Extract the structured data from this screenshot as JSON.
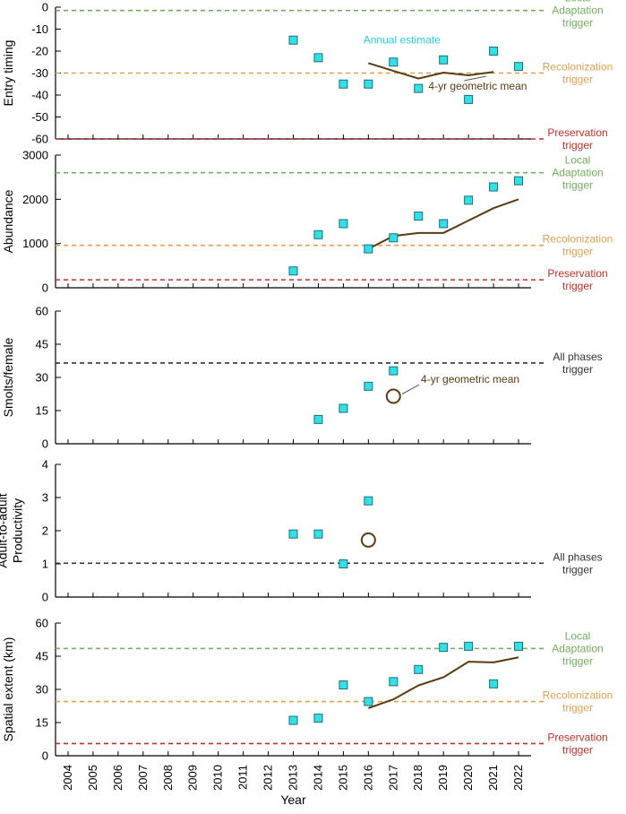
{
  "colors": {
    "marker_fill": "#33e0e8",
    "marker_stroke": "#1a6f78",
    "mean_line": "#5a3a10",
    "local_adaptation": "#6fae5a",
    "recolonization": "#e0a050",
    "preservation": "#c0302a",
    "all_phases": "#333333",
    "annual_label": "#28d0dc"
  },
  "chart_data": [
    {
      "id": "entry-timing",
      "type": "scatter",
      "ylabel": [
        "Entry timing"
      ],
      "ylim": [
        -60,
        0
      ],
      "yticks": [
        0,
        -10,
        -20,
        -30,
        -40,
        -50,
        -60
      ],
      "x": [
        2013,
        2014,
        2015,
        2016,
        2017,
        2018,
        2019,
        2020,
        2021,
        2022
      ],
      "values": [
        -15,
        -23,
        -35,
        -35,
        -25,
        -37,
        -24,
        -42,
        -20,
        -27
      ],
      "mean_x": [
        2016,
        2017,
        2018,
        2019,
        2020,
        2021
      ],
      "mean_values": [
        -25.5,
        -29,
        -32.5,
        -29.8,
        -31,
        -29.5
      ],
      "triggers": [
        {
          "value": -1.5,
          "kind": "local_adaptation",
          "label": [
            "Local",
            "Adaptation",
            "trigger"
          ]
        },
        {
          "value": -30,
          "kind": "recolonization",
          "label": [
            "Recolonization",
            "trigger"
          ]
        },
        {
          "value": -60,
          "kind": "preservation",
          "label": [
            "Preservation",
            "trigger"
          ]
        }
      ],
      "annotations": [
        {
          "text": "Annual estimate",
          "kind": "annual",
          "at": [
            2015.8,
            -16.5
          ]
        },
        {
          "text": "4-yr geometric mean",
          "kind": "mean",
          "at": [
            2018.4,
            -37.5
          ],
          "pointer_to": [
            2020.7,
            -31.5
          ]
        }
      ]
    },
    {
      "id": "abundance",
      "type": "scatter",
      "ylabel": [
        "Abundance"
      ],
      "ylim": [
        0,
        3000
      ],
      "yticks": [
        0,
        1000,
        2000,
        3000
      ],
      "x": [
        2013,
        2014,
        2015,
        2016,
        2017,
        2018,
        2019,
        2020,
        2021,
        2022
      ],
      "values": [
        380,
        1200,
        1450,
        880,
        1130,
        1620,
        1450,
        1980,
        2280,
        2420
      ],
      "mean_x": [
        2016,
        2017,
        2018,
        2019,
        2020,
        2021,
        2022
      ],
      "mean_values": [
        880,
        1170,
        1240,
        1240,
        1520,
        1800,
        2000
      ],
      "triggers": [
        {
          "value": 2600,
          "kind": "local_adaptation",
          "label": [
            "Local",
            "Adaptation",
            "trigger"
          ]
        },
        {
          "value": 960,
          "kind": "recolonization",
          "label": [
            "Recolonization",
            "trigger"
          ]
        },
        {
          "value": 180,
          "kind": "preservation",
          "label": [
            "Preservation",
            "trigger"
          ]
        }
      ],
      "annotations": []
    },
    {
      "id": "smolts",
      "type": "scatter",
      "ylabel": [
        "Smolts/female"
      ],
      "ylim": [
        0,
        60
      ],
      "yticks": [
        0,
        15,
        30,
        45,
        60
      ],
      "x": [
        2014,
        2015,
        2016,
        2017
      ],
      "values": [
        11,
        16,
        26,
        33
      ],
      "mean_points": [
        {
          "x": 2017,
          "value": 21.5
        }
      ],
      "triggers": [
        {
          "value": 36.5,
          "kind": "all_phases",
          "label": [
            "All phases",
            "trigger"
          ]
        }
      ],
      "annotations": [
        {
          "text": "4-yr geometric mean",
          "kind": "mean",
          "at": [
            2018.1,
            27.5
          ],
          "pointer_to": [
            2017.35,
            22.5
          ]
        }
      ]
    },
    {
      "id": "productivity",
      "type": "scatter",
      "ylabel": [
        "Adult-to-adult",
        "Productivity"
      ],
      "ylim": [
        0,
        4
      ],
      "yticks": [
        0,
        1,
        2,
        3,
        4
      ],
      "x": [
        2013,
        2014,
        2015,
        2016
      ],
      "values": [
        1.9,
        1.9,
        1.0,
        2.9
      ],
      "mean_points": [
        {
          "x": 2016,
          "value": 1.72
        }
      ],
      "triggers": [
        {
          "value": 1.02,
          "kind": "all_phases",
          "label": [
            "All phases",
            "trigger"
          ]
        }
      ],
      "annotations": []
    },
    {
      "id": "spatial",
      "type": "scatter",
      "ylabel": [
        "Spatial extent (km)"
      ],
      "ylim": [
        0,
        60
      ],
      "yticks": [
        0,
        15,
        30,
        45,
        60
      ],
      "x": [
        2013,
        2014,
        2015,
        2016,
        2017,
        2018,
        2019,
        2020,
        2021,
        2022
      ],
      "values": [
        16,
        17,
        32,
        24.5,
        33.5,
        39,
        49,
        49.5,
        32.5,
        49.5
      ],
      "mean_x": [
        2016,
        2017,
        2018,
        2019,
        2020,
        2021,
        2022
      ],
      "mean_values": [
        21.5,
        25.5,
        31.8,
        35.5,
        42.5,
        42.2,
        44.5
      ],
      "triggers": [
        {
          "value": 48.5,
          "kind": "local_adaptation",
          "label": [
            "Local",
            "Adaptation",
            "trigger"
          ]
        },
        {
          "value": 24.5,
          "kind": "recolonization",
          "label": [
            "Recolonization",
            "trigger"
          ]
        },
        {
          "value": 5.5,
          "kind": "preservation",
          "label": [
            "Preservation",
            "trigger"
          ]
        }
      ],
      "annotations": []
    }
  ],
  "x_axis": {
    "label": "Year",
    "range": [
      2003.5,
      2022.5
    ],
    "categories": [
      "2004",
      "2005",
      "2006",
      "2007",
      "2008",
      "2009",
      "2010",
      "2011",
      "2012",
      "2013",
      "2014",
      "2015",
      "2016",
      "2017",
      "2018",
      "2019",
      "2020",
      "2021",
      "2022"
    ]
  }
}
